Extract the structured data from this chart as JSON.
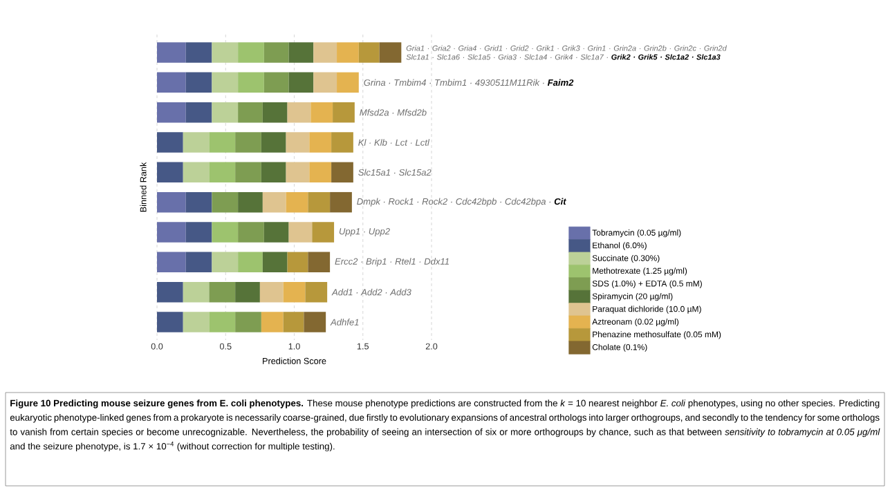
{
  "chart_data": {
    "type": "bar",
    "orientation": "horizontal",
    "stacked": true,
    "xlabel": "Prediction Score",
    "ylabel": "Binned Rank",
    "categories": [
      null,
      null,
      null,
      null,
      null,
      null,
      null,
      null,
      null,
      null
    ],
    "series": [
      {
        "name": "Tobramycin (0.05 µg/ml)",
        "color": "#6870aa",
        "values": [
          0.21,
          0.21,
          0.21,
          null,
          null,
          0.21,
          0.21,
          0.21,
          null,
          null
        ]
      },
      {
        "name": "Ethanol (6.0%)",
        "color": "#465886",
        "values": [
          0.19,
          0.19,
          0.19,
          0.19,
          0.19,
          0.19,
          0.19,
          0.19,
          0.19,
          0.19
        ]
      },
      {
        "name": "Succinate (0.30%)",
        "color": "#bcd198",
        "values": [
          0.19,
          0.19,
          0.19,
          0.19,
          0.19,
          null,
          null,
          0.19,
          0.19,
          0.19
        ]
      },
      {
        "name": "Methotrexate (1.25 µg/ml)",
        "color": "#9dc36e",
        "values": [
          0.19,
          0.19,
          null,
          0.19,
          0.19,
          null,
          0.19,
          0.18,
          null,
          0.19
        ]
      },
      {
        "name": "SDS (1.0%) + EDTA (0.5 mM)",
        "color": "#7e9d52",
        "values": [
          0.18,
          0.18,
          0.18,
          0.19,
          0.19,
          0.19,
          0.19,
          null,
          0.19,
          0.19
        ]
      },
      {
        "name": "Spiramycin (20 µg/ml)",
        "color": "#567339",
        "values": [
          0.18,
          0.18,
          0.18,
          0.18,
          0.18,
          0.18,
          0.18,
          0.18,
          0.18,
          null
        ]
      },
      {
        "name": "Paraquat dichloride (10.0 µM)",
        "color": "#dfc490",
        "values": [
          0.17,
          0.17,
          0.17,
          0.17,
          0.17,
          0.17,
          0.17,
          null,
          0.17,
          null
        ]
      },
      {
        "name": "Aztreonam (0.02 µg/ml)",
        "color": "#e4b350",
        "values": [
          0.16,
          0.16,
          0.16,
          0.16,
          0.16,
          0.16,
          null,
          null,
          0.16,
          0.16
        ]
      },
      {
        "name": "Phenazine methosulfate (0.05 mM)",
        "color": "#b7983b",
        "values": [
          0.15,
          null,
          0.16,
          0.16,
          null,
          0.16,
          0.16,
          0.15,
          0.16,
          0.15
        ]
      },
      {
        "name": "Cholate (0.1%)",
        "color": "#836831",
        "values": [
          0.16,
          null,
          null,
          null,
          0.16,
          0.16,
          null,
          0.16,
          null,
          0.16
        ]
      }
    ],
    "xlim": [
      0,
      2
    ],
    "xticks": [
      {
        "value": 0,
        "label": "0.0"
      },
      {
        "value": 0.5,
        "label": "0.5"
      },
      {
        "value": 1,
        "label": "1.0"
      },
      {
        "value": 1.5,
        "label": "1.5"
      },
      {
        "value": 2,
        "label": "2.0"
      }
    ],
    "grid": "x",
    "legend": "right",
    "tick_labels": "x",
    "annotations": [
      "Gria1 · Gria2 · Gria4 · Grid1 · Grid2 · Grik1 · Grik3 · Grin1 · Grin2a · Grin2b · Grin2c · Grin2d Slc1a1 · Slc1a6 · Slc1a5 · Gria3 · Slc1a4 · Grik4 · Slc1a7 · **Grik2 · Grik5 · Slc1a2 · Slc1a3**",
      "Grina · Tmbim4 · Tmbim1 · 4930511M11Rik · **Faim2**",
      "Mfsd2a · Mfsd2b",
      "Kl · Klb · Lct · Lctl",
      "Slc15a1 · Slc15a2",
      "Dmpk · Rock1 · Rock2 · Cdc42bpb · Cdc42bpa · **Cit**",
      "Upp1 · Upp2",
      "Ercc2 · Brip1 · Rtel1 · Ddx11",
      "Add1 · Add2 · Add3",
      "Adhfe1",
      "**Figure 10 Predicting mouse seizure genes from E. coli phenotypes.** These mouse phenotype predictions are constructed from the *k* = 10 nearest neighbor *E. coli* phenotypes, using no other species. Predicting eukaryotic phenotype-linked genes from a prokaryote is necessarily coarse-grained, due firstly to evolutionary expansions of ancestral orthologs into larger orthogroups, and secondly to the tendency for some orthologs to vanish from certain species or become unrecognizable. Nevertheless, the probability of seeing an intersection of six or more orthogroups by chance, such as that between *sensitivity to tobramycin at 0.05 μg/ml* and the seizure phenotype, is 1.7 × 10$^{−4}$ (without correction for multiple testing)."
    ]
  }
}
